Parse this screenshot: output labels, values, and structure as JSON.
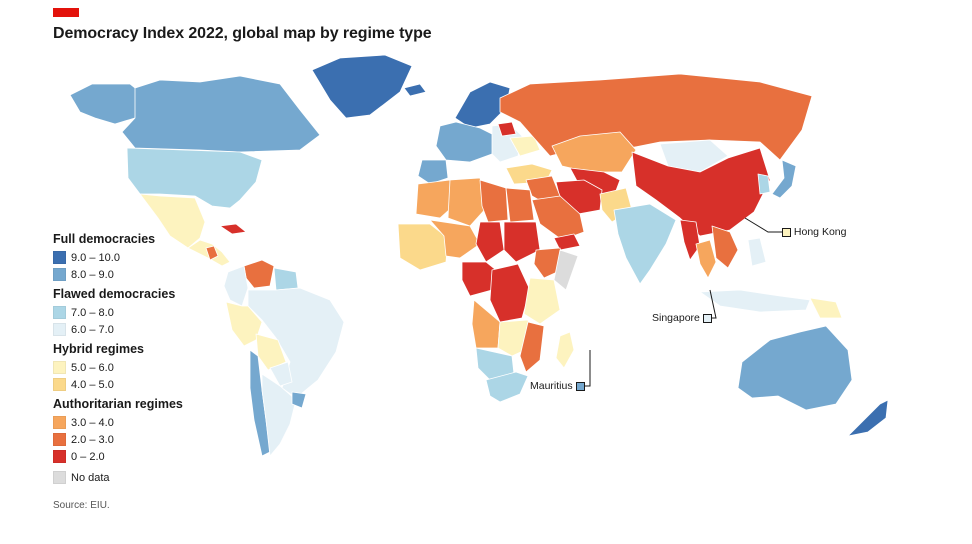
{
  "header": {
    "title": "Democracy Index 2022, global map by regime type",
    "brand_color": "#e3120b"
  },
  "legend": {
    "groups": [
      {
        "heading": "Full democracies",
        "items": [
          {
            "label": "9.0 – 10.0",
            "color": "#3b6fb0"
          },
          {
            "label": "8.0 – 9.0",
            "color": "#75a8cf"
          }
        ]
      },
      {
        "heading": "Flawed democracies",
        "items": [
          {
            "label": "7.0 – 8.0",
            "color": "#acd6e6"
          },
          {
            "label": "6.0 – 7.0",
            "color": "#e4f0f6"
          }
        ]
      },
      {
        "heading": "Hybrid regimes",
        "items": [
          {
            "label": "5.0 – 6.0",
            "color": "#fdf3bf"
          },
          {
            "label": "4.0 – 5.0",
            "color": "#fbd98b"
          }
        ]
      },
      {
        "heading": "Authoritarian regimes",
        "items": [
          {
            "label": "3.0 – 4.0",
            "color": "#f6a65d"
          },
          {
            "label": "2.0 – 3.0",
            "color": "#e8703f"
          },
          {
            "label": "0 – 2.0",
            "color": "#d7302a"
          }
        ]
      }
    ],
    "no_data": {
      "label": "No data",
      "color": "#dcdcdc"
    }
  },
  "callouts": {
    "hong_kong": {
      "label": "Hong Kong",
      "color": "#fdf3bf"
    },
    "singapore": {
      "label": "Singapore",
      "color": "#e4f0f6"
    },
    "mauritius": {
      "label": "Mauritius",
      "color": "#75a8cf"
    }
  },
  "map": {
    "regions": [
      {
        "name": "alaska",
        "color": "#75a8cf"
      },
      {
        "name": "canada",
        "color": "#75a8cf"
      },
      {
        "name": "greenland",
        "color": "#3b6fb0"
      },
      {
        "name": "usa",
        "color": "#acd6e6"
      },
      {
        "name": "mexico",
        "color": "#fdf3bf"
      },
      {
        "name": "central-america",
        "color": "#fdf3bf"
      },
      {
        "name": "nicaragua",
        "color": "#e8703f"
      },
      {
        "name": "cuba",
        "color": "#d7302a"
      },
      {
        "name": "venezuela",
        "color": "#e8703f"
      },
      {
        "name": "colombia",
        "color": "#e4f0f6"
      },
      {
        "name": "guiana",
        "color": "#acd6e6"
      },
      {
        "name": "brazil",
        "color": "#e4f0f6"
      },
      {
        "name": "peru",
        "color": "#fdf3bf"
      },
      {
        "name": "bolivia",
        "color": "#fdf3bf"
      },
      {
        "name": "paraguay",
        "color": "#e4f0f6"
      },
      {
        "name": "chile",
        "color": "#75a8cf"
      },
      {
        "name": "argentina",
        "color": "#e4f0f6"
      },
      {
        "name": "uruguay",
        "color": "#75a8cf"
      },
      {
        "name": "iceland",
        "color": "#3b6fb0"
      },
      {
        "name": "scandinavia",
        "color": "#3b6fb0"
      },
      {
        "name": "western-europe",
        "color": "#75a8cf"
      },
      {
        "name": "iberia",
        "color": "#75a8cf"
      },
      {
        "name": "eastern-europe",
        "color": "#e4f0f6"
      },
      {
        "name": "belarus",
        "color": "#d7302a"
      },
      {
        "name": "ukraine",
        "color": "#fdf3bf"
      },
      {
        "name": "turkey",
        "color": "#fbd98b"
      },
      {
        "name": "russia",
        "color": "#e8703f"
      },
      {
        "name": "kazakhstan",
        "color": "#f6a65d"
      },
      {
        "name": "mongolia",
        "color": "#e4f0f6"
      },
      {
        "name": "china",
        "color": "#d7302a"
      },
      {
        "name": "central-asia",
        "color": "#d7302a"
      },
      {
        "name": "iran",
        "color": "#d7302a"
      },
      {
        "name": "middle-east",
        "color": "#e8703f"
      },
      {
        "name": "saudi-arabia",
        "color": "#e8703f"
      },
      {
        "name": "yemen",
        "color": "#d7302a"
      },
      {
        "name": "pakistan",
        "color": "#fbd98b"
      },
      {
        "name": "india",
        "color": "#acd6e6"
      },
      {
        "name": "myanmar",
        "color": "#d7302a"
      },
      {
        "name": "southeast-asia",
        "color": "#f6a65d"
      },
      {
        "name": "indochina",
        "color": "#e8703f"
      },
      {
        "name": "north-africa",
        "color": "#f6a65d"
      },
      {
        "name": "algeria",
        "color": "#f6a65d"
      },
      {
        "name": "libya",
        "color": "#e8703f"
      },
      {
        "name": "egypt",
        "color": "#e8703f"
      },
      {
        "name": "west-africa",
        "color": "#fbd98b"
      },
      {
        "name": "sahel",
        "color": "#f6a65d"
      },
      {
        "name": "chad",
        "color": "#d7302a"
      },
      {
        "name": "sudan",
        "color": "#d7302a"
      },
      {
        "name": "ethiopia",
        "color": "#e8703f"
      },
      {
        "name": "somalia",
        "color": "#dcdcdc"
      },
      {
        "name": "central-africa",
        "color": "#d7302a"
      },
      {
        "name": "drc",
        "color": "#d7302a"
      },
      {
        "name": "kenya-tanzania",
        "color": "#fdf3bf"
      },
      {
        "name": "angola",
        "color": "#f6a65d"
      },
      {
        "name": "zambia-zimbabwe",
        "color": "#fdf3bf"
      },
      {
        "name": "mozambique",
        "color": "#e8703f"
      },
      {
        "name": "namibia-botswana",
        "color": "#acd6e6"
      },
      {
        "name": "south-africa",
        "color": "#acd6e6"
      },
      {
        "name": "madagascar",
        "color": "#fdf3bf"
      },
      {
        "name": "japan",
        "color": "#75a8cf"
      },
      {
        "name": "korea",
        "color": "#acd6e6"
      },
      {
        "name": "philippines",
        "color": "#e4f0f6"
      },
      {
        "name": "indonesia",
        "color": "#e4f0f6"
      },
      {
        "name": "papua-new-guinea",
        "color": "#fdf3bf"
      },
      {
        "name": "australia",
        "color": "#75a8cf"
      },
      {
        "name": "new-zealand",
        "color": "#3b6fb0"
      }
    ]
  },
  "footer": {
    "source": "Source: EIU."
  }
}
